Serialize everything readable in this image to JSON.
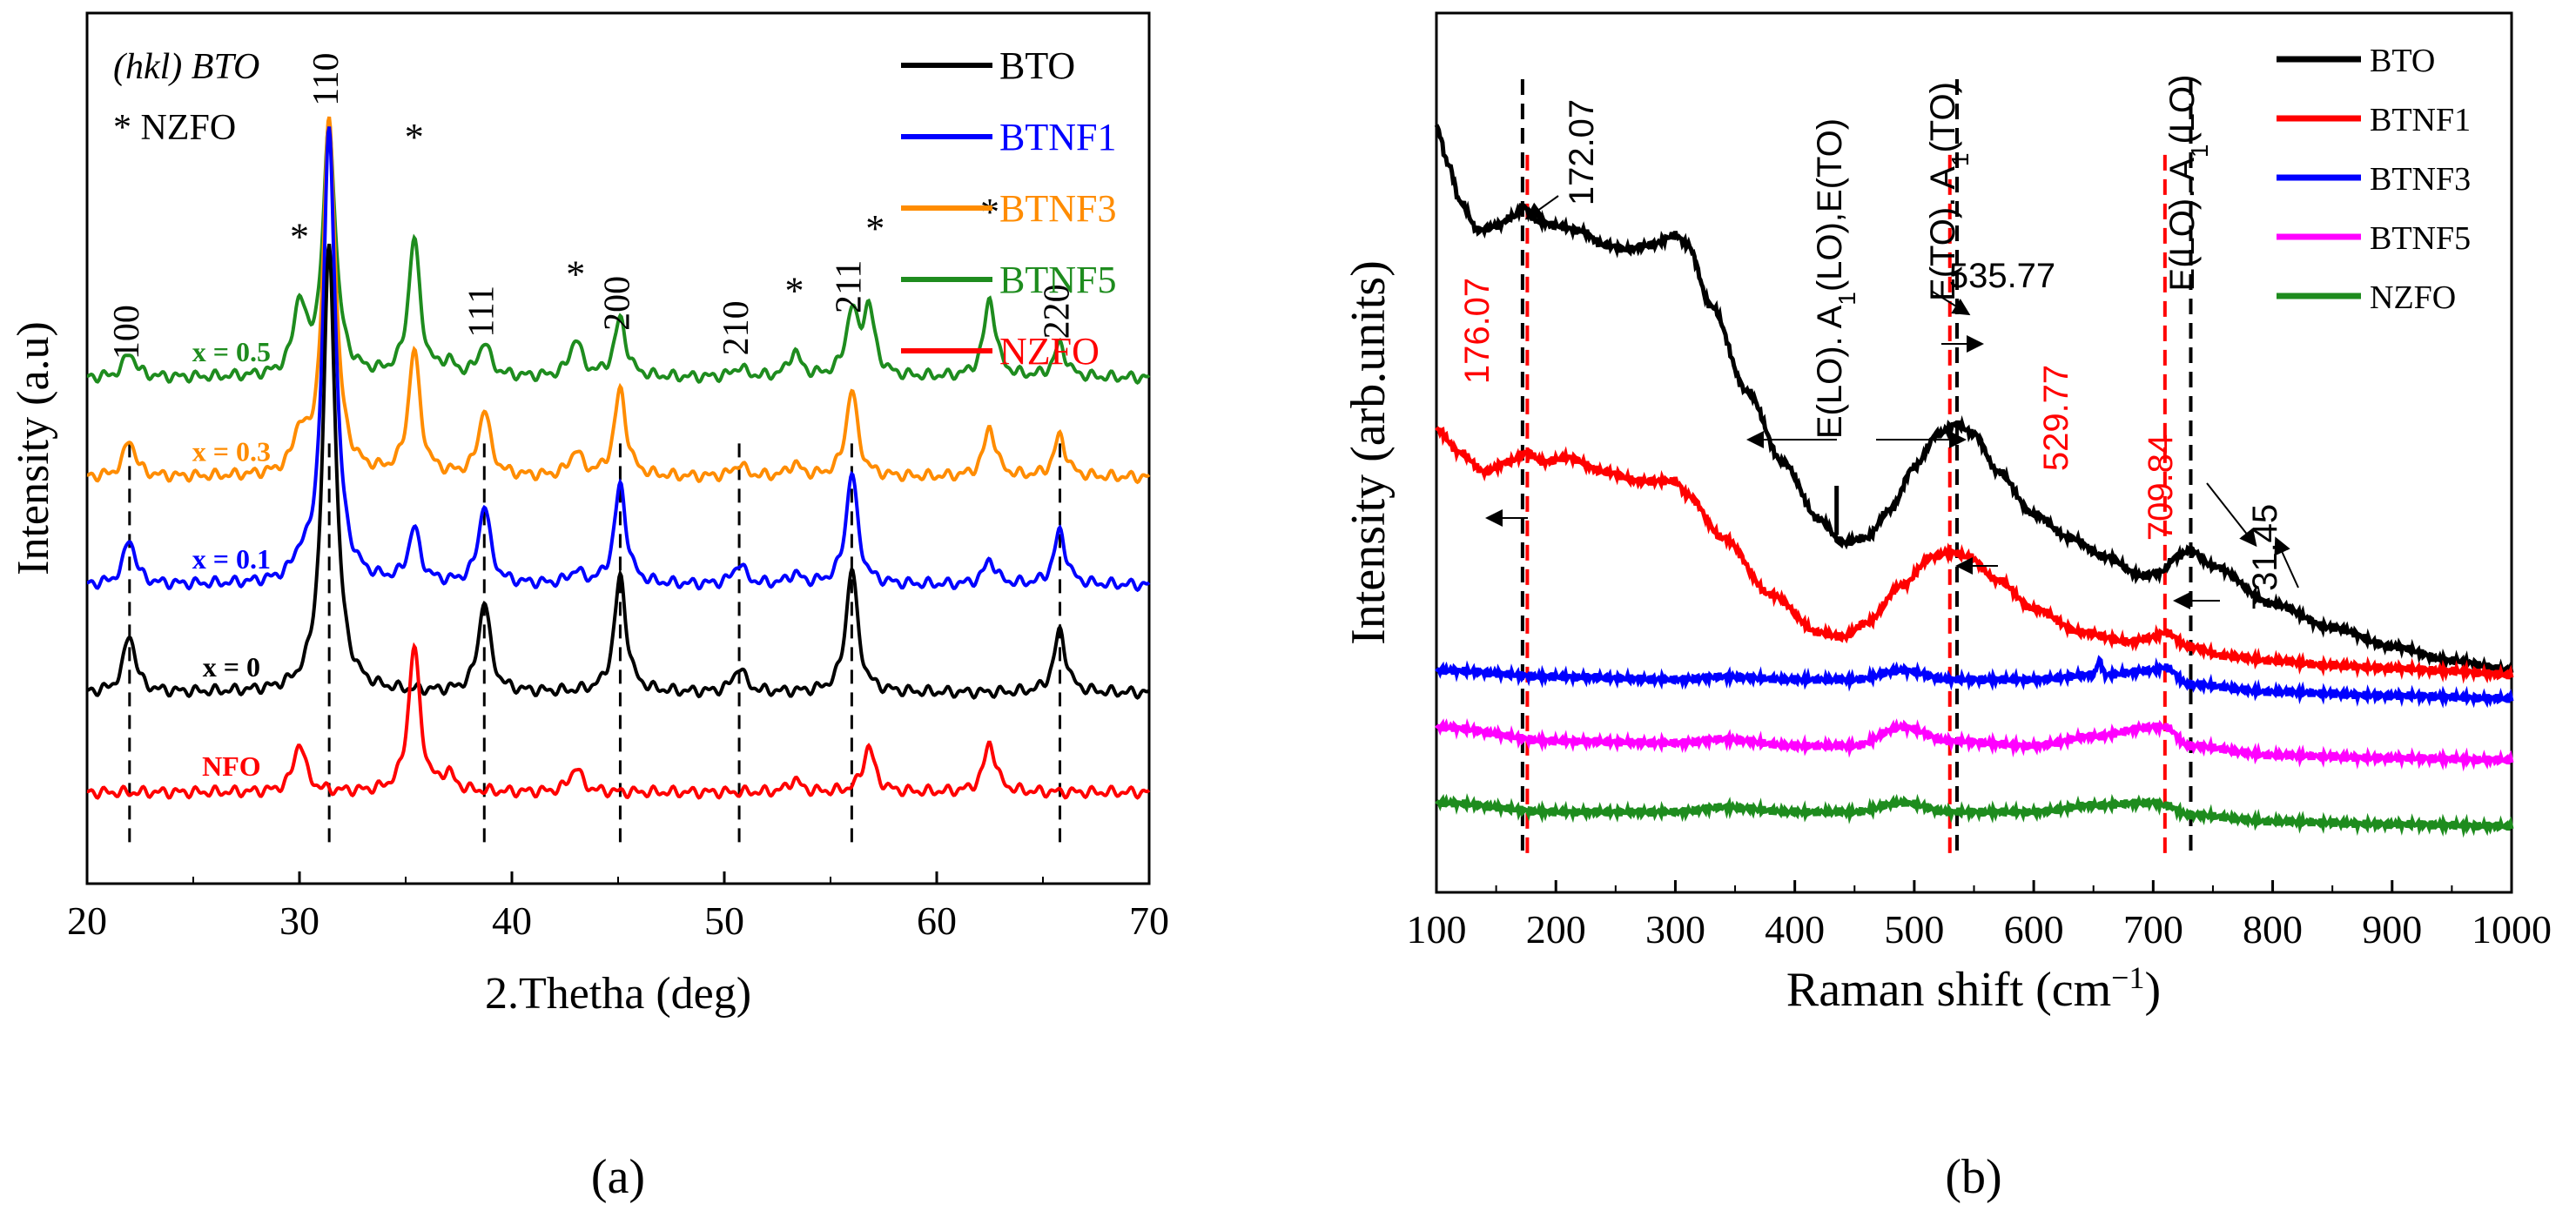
{
  "panel_labels": {
    "a": "(a)",
    "b": "(b)"
  },
  "chart_data": [
    {
      "id": "a",
      "type": "line",
      "xlabel": "2.Thetha (deg)",
      "ylabel": "Intensity (a.u)",
      "xlim": [
        20,
        70
      ],
      "x_ticks": [
        20,
        30,
        40,
        50,
        60,
        70
      ],
      "y_ticks_shown": false,
      "grid": false,
      "notes": [
        "(hkl) BTO",
        "* NZFO"
      ],
      "legend": {
        "placement": "top-right",
        "entries": [
          {
            "name": "BTO",
            "color": "#000000"
          },
          {
            "name": "BTNF1",
            "color": "#0000ff"
          },
          {
            "name": "BTNF3",
            "color": "#ff8c00"
          },
          {
            "name": "BTNF5",
            "color": "#1e8c1e"
          },
          {
            "name": "NZFO",
            "color": "#ff0000"
          }
        ]
      },
      "series": [
        {
          "name": "BTNF5",
          "label": "x = 0.5",
          "color": "#1e8c1e",
          "baseline": 5.3,
          "peaks": [
            [
              22.0,
              0.3
            ],
            [
              30.0,
              0.85
            ],
            [
              31.4,
              3.0
            ],
            [
              35.4,
              1.65
            ],
            [
              37.0,
              0.15
            ],
            [
              38.7,
              0.4
            ],
            [
              43.0,
              0.45
            ],
            [
              45.1,
              0.7
            ],
            [
              50.7,
              0.12
            ],
            [
              53.3,
              0.3
            ],
            [
              56.0,
              0.75
            ],
            [
              56.8,
              0.8
            ],
            [
              62.5,
              0.95
            ],
            [
              65.8,
              0.4
            ]
          ]
        },
        {
          "name": "BTNF3",
          "label": "x = 0.3",
          "color": "#ff8c00",
          "baseline": 4.1,
          "peaks": [
            [
              22.0,
              0.45
            ],
            [
              30.0,
              0.45
            ],
            [
              31.4,
              4.3
            ],
            [
              35.4,
              1.5
            ],
            [
              38.7,
              0.8
            ],
            [
              43.0,
              0.3
            ],
            [
              45.1,
              1.05
            ],
            [
              50.7,
              0.15
            ],
            [
              53.3,
              0.15
            ],
            [
              56.0,
              1.05
            ],
            [
              62.5,
              0.6
            ],
            [
              65.8,
              0.5
            ]
          ]
        },
        {
          "name": "BTNF1",
          "label": "x = 0.1",
          "color": "#0000ff",
          "baseline": 2.8,
          "peaks": [
            [
              22.0,
              0.55
            ],
            [
              30.0,
              0.2
            ],
            [
              31.4,
              5.5
            ],
            [
              35.4,
              0.65
            ],
            [
              38.7,
              0.95
            ],
            [
              43.0,
              0.15
            ],
            [
              45.1,
              1.2
            ],
            [
              50.7,
              0.25
            ],
            [
              53.3,
              0.12
            ],
            [
              56.0,
              1.35
            ],
            [
              62.5,
              0.3
            ],
            [
              65.8,
              0.65
            ]
          ]
        },
        {
          "name": "BTO",
          "label": "x = 0",
          "color": "#000000",
          "baseline": 1.5,
          "peaks": [
            [
              22.0,
              0.7
            ],
            [
              31.4,
              5.4
            ],
            [
              38.7,
              1.1
            ],
            [
              45.1,
              1.4
            ],
            [
              50.7,
              0.3
            ],
            [
              56.0,
              1.5
            ],
            [
              65.8,
              0.75
            ]
          ]
        },
        {
          "name": "NZFO",
          "label": "NFO",
          "color": "#ff0000",
          "baseline": 0.3,
          "peaks": [
            [
              30.0,
              0.6
            ],
            [
              35.4,
              1.75
            ],
            [
              37.0,
              0.2
            ],
            [
              43.0,
              0.3
            ],
            [
              53.3,
              0.15
            ],
            [
              56.8,
              0.55
            ],
            [
              62.5,
              0.6
            ]
          ]
        }
      ],
      "peak_labels": [
        {
          "text": "100",
          "x": 22.0,
          "dashed": true
        },
        {
          "text": "110",
          "x": 31.4,
          "dashed": true
        },
        {
          "text": "111",
          "x": 38.7,
          "dashed": true
        },
        {
          "text": "200",
          "x": 45.1,
          "dashed": true
        },
        {
          "text": "210",
          "x": 50.7,
          "dashed": true
        },
        {
          "text": "211",
          "x": 56.0,
          "dashed": true
        },
        {
          "text": "220",
          "x": 65.8,
          "dashed": true
        }
      ],
      "star_positions": [
        30.0,
        35.4,
        43.0,
        53.3,
        57.1,
        62.5
      ]
    },
    {
      "id": "b",
      "type": "line",
      "xlabel": "Raman shift (cm⁻¹)",
      "ylabel": "Intensity (arb.units)",
      "xlim": [
        100,
        1000
      ],
      "x_ticks": [
        100,
        200,
        300,
        400,
        500,
        600,
        700,
        800,
        900,
        1000
      ],
      "y_ticks_shown": false,
      "grid": false,
      "legend": {
        "placement": "top-right",
        "entries": [
          {
            "name": "BTO",
            "color": "#000000"
          },
          {
            "name": "BTNF1",
            "color": "#ff0000"
          },
          {
            "name": "BTNF3",
            "color": "#0000ff"
          },
          {
            "name": "BTNF5",
            "color": "#ff00ff"
          },
          {
            "name": "NZFO",
            "color": "#1e8c1e"
          }
        ]
      },
      "series": [
        {
          "name": "BTO",
          "color": "#000000",
          "x": [
            100,
            110,
            120,
            135,
            150,
            165,
            172,
            185,
            200,
            220,
            240,
            260,
            280,
            300,
            310,
            330,
            360,
            390,
            420,
            440,
            460,
            480,
            500,
            520,
            535,
            550,
            570,
            600,
            630,
            660,
            690,
            705,
            720,
            731,
            750,
            800,
            850,
            900,
            950,
            1000
          ],
          "y": [
            8.1,
            7.7,
            7.3,
            7.0,
            7.05,
            7.15,
            7.25,
            7.1,
            7.05,
            7.0,
            6.85,
            6.8,
            6.85,
            6.95,
            6.85,
            6.2,
            5.3,
            4.55,
            3.95,
            3.7,
            3.75,
            4.05,
            4.5,
            4.85,
            4.95,
            4.85,
            4.45,
            4.0,
            3.75,
            3.55,
            3.35,
            3.38,
            3.55,
            3.62,
            3.45,
            3.05,
            2.8,
            2.6,
            2.45,
            2.35
          ]
        },
        {
          "name": "BTNF1",
          "color": "#ff0000",
          "x": [
            100,
            120,
            140,
            160,
            176,
            190,
            210,
            240,
            270,
            300,
            310,
            340,
            380,
            420,
            440,
            460,
            490,
            515,
            530,
            545,
            570,
            600,
            640,
            680,
            700,
            710,
            730,
            760,
            800,
            850,
            900,
            950,
            1000
          ],
          "y": [
            4.9,
            4.65,
            4.45,
            4.55,
            4.65,
            4.55,
            4.6,
            4.45,
            4.35,
            4.35,
            4.2,
            3.75,
            3.15,
            2.75,
            2.7,
            2.85,
            3.25,
            3.55,
            3.6,
            3.55,
            3.3,
            3.0,
            2.75,
            2.65,
            2.7,
            2.75,
            2.6,
            2.5,
            2.45,
            2.4,
            2.37,
            2.34,
            2.3
          ]
        },
        {
          "name": "BTNF3",
          "color": "#0000ff",
          "x": [
            100,
            200,
            300,
            340,
            400,
            450,
            490,
            530,
            600,
            650,
            655,
            660,
            700,
            710,
            730,
            800,
            900,
            1000
          ],
          "y": [
            2.35,
            2.28,
            2.25,
            2.28,
            2.25,
            2.25,
            2.35,
            2.25,
            2.25,
            2.3,
            2.45,
            2.3,
            2.35,
            2.38,
            2.2,
            2.12,
            2.08,
            2.05
          ]
        },
        {
          "name": "BTNF5",
          "color": "#ff00ff",
          "x": [
            100,
            200,
            300,
            340,
            400,
            450,
            490,
            530,
            600,
            650,
            700,
            710,
            730,
            800,
            900,
            1000
          ],
          "y": [
            1.75,
            1.6,
            1.58,
            1.62,
            1.55,
            1.55,
            1.75,
            1.6,
            1.55,
            1.65,
            1.75,
            1.75,
            1.55,
            1.45,
            1.42,
            1.4
          ]
        },
        {
          "name": "NZFO",
          "color": "#1e8c1e",
          "x": [
            100,
            200,
            300,
            340,
            400,
            450,
            490,
            530,
            600,
            650,
            700,
            710,
            730,
            800,
            900,
            1000
          ],
          "y": [
            0.95,
            0.85,
            0.85,
            0.9,
            0.85,
            0.85,
            0.95,
            0.85,
            0.85,
            0.92,
            0.95,
            0.92,
            0.82,
            0.75,
            0.72,
            0.7
          ]
        }
      ],
      "ylim": [
        0,
        9.3
      ],
      "annotations": [
        {
          "text": "172.07",
          "x": 172,
          "color": "#000000"
        },
        {
          "text": "176.07",
          "x": 176,
          "color": "#ff0000"
        },
        {
          "text": "535.77",
          "x": 535.77,
          "color": "#000000"
        },
        {
          "text": "529.77",
          "x": 529.77,
          "color": "#ff0000"
        },
        {
          "text": "709.84",
          "x": 709.84,
          "color": "#ff0000"
        },
        {
          "text": "731.45",
          "x": 731.45,
          "color": "#000000"
        }
      ],
      "mode_labels": [
        {
          "text": "E(LO). A1(LO),E(TO)"
        },
        {
          "text": "E(TO). A1(TO)"
        },
        {
          "text": "E(LO). A1(LO)"
        }
      ],
      "dashed_lines": [
        {
          "x": 172.07,
          "color": "#000000"
        },
        {
          "x": 176.07,
          "color": "#ff0000"
        },
        {
          "x": 529.77,
          "color": "#ff0000"
        },
        {
          "x": 535.77,
          "color": "#000000"
        },
        {
          "x": 709.84,
          "color": "#ff0000"
        },
        {
          "x": 731.45,
          "color": "#000000"
        }
      ]
    }
  ]
}
